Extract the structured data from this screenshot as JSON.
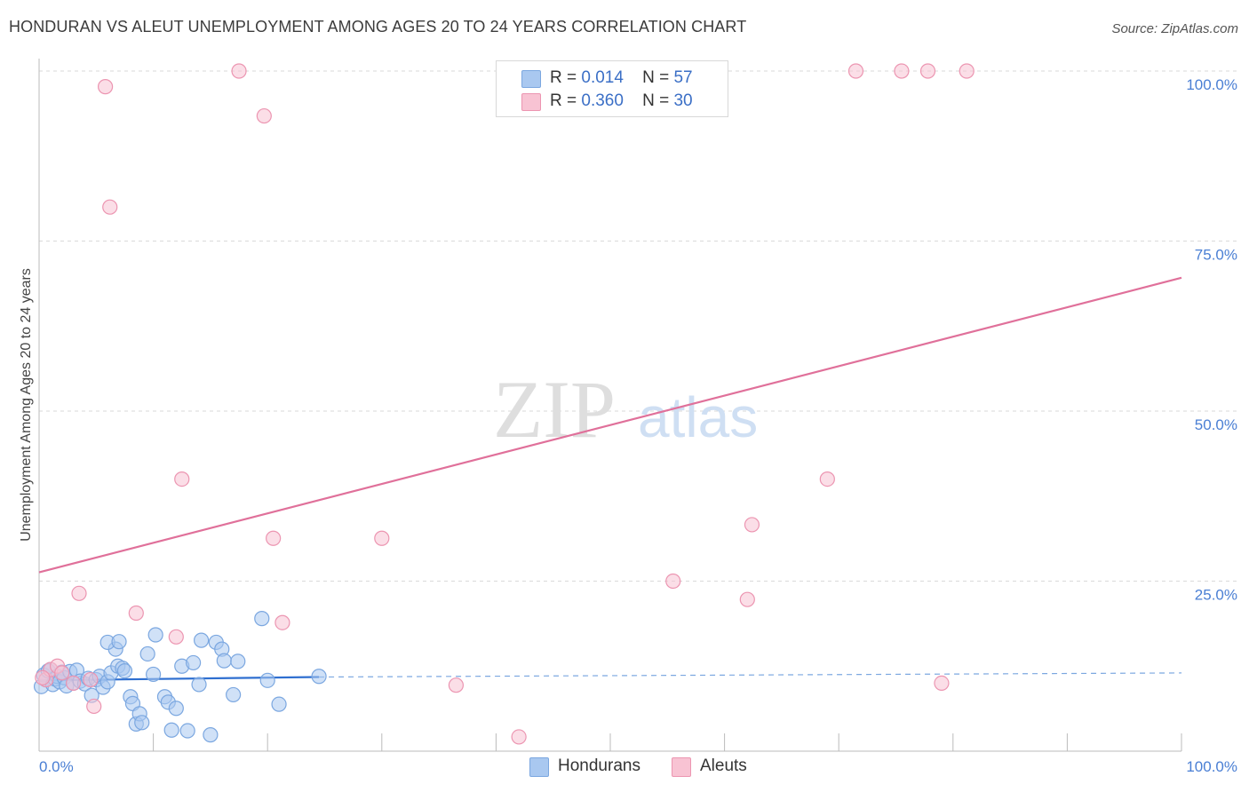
{
  "title": "HONDURAN VS ALEUT UNEMPLOYMENT AMONG AGES 20 TO 24 YEARS CORRELATION CHART",
  "source": "Source: ZipAtlas.com",
  "watermark": {
    "zip": "ZIP",
    "atlas": "atlas"
  },
  "legend": {
    "rows": [
      {
        "r_label": "R =",
        "r_value": "0.014",
        "n_label": "N =",
        "n_value": "57",
        "color": "#a9c8f0",
        "border": "#7ba7e0"
      },
      {
        "r_label": "R =",
        "r_value": "0.360",
        "n_label": "N =",
        "n_value": "30",
        "color": "#f8c3d3",
        "border": "#ec95b1"
      }
    ]
  },
  "bottom_legend": [
    {
      "label": "Hondurans",
      "color": "#a9c8f0",
      "border": "#7ba7e0"
    },
    {
      "label": "Aleuts",
      "color": "#f8c3d3",
      "border": "#ec95b1"
    }
  ],
  "chart_data": {
    "type": "scatter",
    "title": "HONDURAN VS ALEUT UNEMPLOYMENT AMONG AGES 20 TO 24 YEARS CORRELATION CHART",
    "xlabel": "",
    "ylabel": "Unemployment Among Ages 20 to 24 years",
    "xlim": [
      0,
      100
    ],
    "ylim": [
      0,
      100
    ],
    "x_tick_labels": [
      "0.0%",
      "100.0%"
    ],
    "y_tick_labels": [
      "25.0%",
      "50.0%",
      "75.0%",
      "100.0%"
    ],
    "y_tick_values": [
      25,
      50,
      75,
      100
    ],
    "grid": true,
    "series": [
      {
        "name": "Hondurans",
        "color": "#7ba7e0",
        "fill": "#a9c8f0",
        "R": 0.014,
        "N": 57,
        "trend": {
          "x": [
            0,
            24.5
          ],
          "y": [
            10.4,
            10.9
          ],
          "dashed_extension_to": 100,
          "dashed_end_y": 11.5
        },
        "points": [
          [
            0.2,
            9.5
          ],
          [
            0.4,
            11.2
          ],
          [
            0.6,
            10.5
          ],
          [
            0.8,
            11.8
          ],
          [
            1.0,
            12.0
          ],
          [
            1.2,
            9.8
          ],
          [
            1.4,
            10.6
          ],
          [
            1.6,
            11.0
          ],
          [
            1.8,
            10.2
          ],
          [
            2.0,
            11.6
          ],
          [
            2.2,
            10.8
          ],
          [
            2.4,
            9.6
          ],
          [
            2.7,
            11.7
          ],
          [
            3.0,
            10.0
          ],
          [
            3.3,
            11.9
          ],
          [
            3.6,
            10.3
          ],
          [
            4.0,
            9.9
          ],
          [
            4.3,
            10.7
          ],
          [
            4.6,
            8.2
          ],
          [
            5.0,
            10.5
          ],
          [
            5.3,
            11.0
          ],
          [
            5.6,
            9.4
          ],
          [
            6.0,
            10.2
          ],
          [
            6.3,
            11.5
          ],
          [
            6.7,
            15.0
          ],
          [
            6.9,
            12.5
          ],
          [
            6.0,
            16.0
          ],
          [
            7.0,
            16.1
          ],
          [
            7.3,
            12.2
          ],
          [
            7.5,
            11.8
          ],
          [
            8.0,
            8.0
          ],
          [
            8.2,
            7.0
          ],
          [
            8.5,
            4.0
          ],
          [
            8.8,
            5.5
          ],
          [
            9.0,
            4.2
          ],
          [
            9.5,
            14.3
          ],
          [
            10.0,
            11.3
          ],
          [
            10.2,
            17.1
          ],
          [
            11.0,
            8.0
          ],
          [
            11.3,
            7.2
          ],
          [
            11.6,
            3.1
          ],
          [
            12.0,
            6.3
          ],
          [
            12.5,
            12.5
          ],
          [
            13.0,
            3.0
          ],
          [
            13.5,
            13.0
          ],
          [
            14.2,
            16.3
          ],
          [
            14.0,
            9.8
          ],
          [
            15.0,
            2.4
          ],
          [
            15.5,
            16.0
          ],
          [
            16.0,
            15.0
          ],
          [
            16.2,
            13.3
          ],
          [
            17.0,
            8.3
          ],
          [
            17.4,
            13.2
          ],
          [
            19.5,
            19.5
          ],
          [
            20.0,
            10.4
          ],
          [
            21.0,
            6.9
          ],
          [
            24.5,
            11.0
          ]
        ]
      },
      {
        "name": "Aleuts",
        "color": "#ec95b1",
        "fill": "#f8c3d3",
        "R": 0.36,
        "N": 30,
        "trend": {
          "x": [
            0,
            100
          ],
          "y": [
            26.3,
            69.6
          ]
        },
        "points": [
          [
            0.6,
            10.5
          ],
          [
            1.0,
            12.0
          ],
          [
            1.6,
            12.5
          ],
          [
            2.0,
            11.5
          ],
          [
            3.0,
            10.0
          ],
          [
            3.5,
            23.2
          ],
          [
            4.5,
            10.5
          ],
          [
            4.8,
            6.6
          ],
          [
            5.8,
            97.7
          ],
          [
            6.2,
            80.0
          ],
          [
            8.5,
            20.3
          ],
          [
            12.0,
            16.8
          ],
          [
            12.5,
            40.0
          ],
          [
            17.5,
            100.0
          ],
          [
            19.7,
            93.4
          ],
          [
            20.5,
            31.3
          ],
          [
            21.3,
            18.9
          ],
          [
            30.0,
            31.3
          ],
          [
            36.5,
            9.7
          ],
          [
            42.0,
            2.1
          ],
          [
            55.5,
            25.0
          ],
          [
            62.0,
            22.3
          ],
          [
            62.4,
            33.3
          ],
          [
            69.0,
            40.0
          ],
          [
            71.5,
            100.0
          ],
          [
            75.5,
            100.0
          ],
          [
            77.8,
            100.0
          ],
          [
            79.0,
            10.0
          ],
          [
            81.2,
            100.0
          ],
          [
            0.3,
            10.8
          ]
        ]
      }
    ]
  }
}
